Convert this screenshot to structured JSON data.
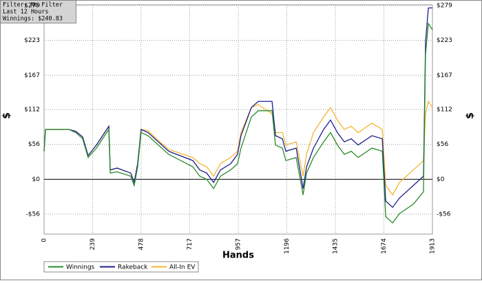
{
  "info": {
    "filter": "Filter: No Filter",
    "period": "Last  12 Hours",
    "winnings": "Winnings: $240.83"
  },
  "chart_data": {
    "type": "line",
    "xlabel": "Hands",
    "ylabel": "$",
    "y2label": "$",
    "x": [
      0,
      7,
      20,
      122,
      156,
      190,
      217,
      258,
      319,
      326,
      360,
      427,
      444,
      461,
      478,
      512,
      563,
      614,
      733,
      767,
      801,
      835,
      869,
      919,
      953,
      970,
      1021,
      1055,
      1123,
      1140,
      1174,
      1191,
      1242,
      1276,
      1293,
      1327,
      1377,
      1411,
      1445,
      1479,
      1513,
      1547,
      1615,
      1666,
      1683,
      1717,
      1751,
      1819,
      1869,
      1879,
      1893,
      1913
    ],
    "series": [
      {
        "name": "All-In EV",
        "color": "#f2b632",
        "values": [
          45,
          80,
          80,
          80,
          77,
          68,
          38,
          55,
          85,
          15,
          18,
          10,
          -5,
          25,
          80,
          78,
          62,
          48,
          35,
          25,
          20,
          5,
          25,
          35,
          45,
          75,
          115,
          120,
          105,
          75,
          75,
          55,
          60,
          5,
          40,
          75,
          100,
          115,
          95,
          80,
          85,
          75,
          90,
          80,
          -10,
          -25,
          -5,
          15,
          30,
          105,
          125,
          115
        ]
      },
      {
        "name": "Rakeback",
        "color": "#1c1c8c",
        "values": [
          45,
          80,
          80,
          80,
          77,
          68,
          38,
          55,
          85,
          15,
          18,
          10,
          -5,
          25,
          80,
          75,
          60,
          45,
          30,
          15,
          10,
          -5,
          15,
          25,
          40,
          70,
          115,
          125,
          125,
          70,
          65,
          45,
          50,
          -15,
          20,
          50,
          80,
          95,
          75,
          60,
          65,
          55,
          70,
          65,
          -35,
          -45,
          -30,
          -10,
          5,
          220,
          275,
          275
        ]
      },
      {
        "name": "Winnings",
        "color": "#2a8a2a",
        "values": [
          45,
          80,
          80,
          80,
          75,
          65,
          35,
          50,
          80,
          10,
          12,
          5,
          -10,
          20,
          75,
          70,
          55,
          40,
          20,
          5,
          0,
          -15,
          5,
          15,
          25,
          50,
          100,
          110,
          110,
          55,
          50,
          30,
          35,
          -25,
          10,
          35,
          60,
          75,
          55,
          40,
          45,
          35,
          50,
          45,
          -60,
          -70,
          -55,
          -40,
          -20,
          200,
          250,
          240
        ]
      }
    ],
    "legend_order": [
      "Winnings",
      "Rakeback",
      "All-In EV"
    ],
    "xlim": [
      0,
      1913
    ],
    "xticks": [
      0,
      239,
      478,
      717,
      957,
      1196,
      1435,
      1674,
      1913
    ],
    "ylim": [
      -88,
      280
    ],
    "yticks": [
      {
        "value": -56,
        "label": "-$56"
      },
      {
        "value": 0,
        "label": "$0"
      },
      {
        "value": 56,
        "label": "$56"
      },
      {
        "value": 112,
        "label": "$112"
      },
      {
        "value": 167,
        "label": "$167"
      },
      {
        "value": 223,
        "label": "$223"
      },
      {
        "value": 279,
        "label": "$279"
      }
    ],
    "grid": true
  }
}
